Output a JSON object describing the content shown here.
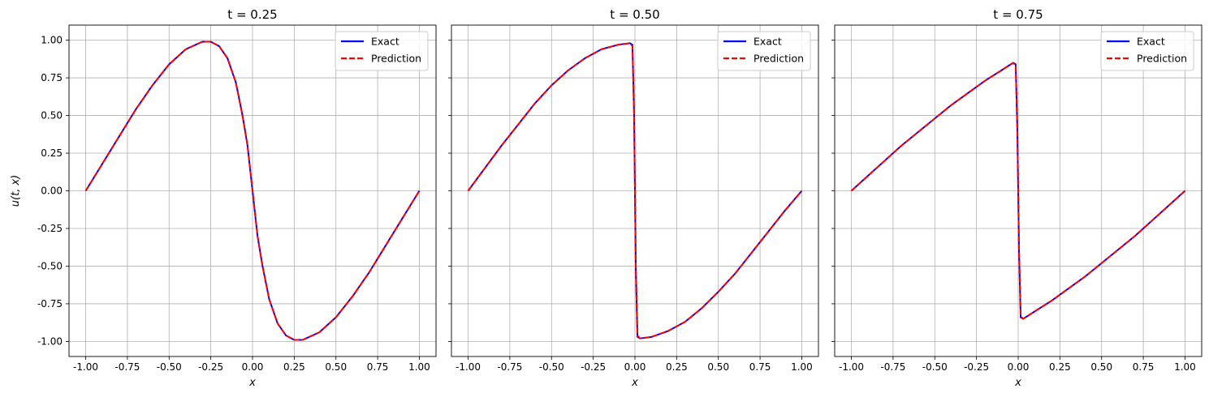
{
  "figure": {
    "series_styles": [
      {
        "name": "Exact",
        "color": "#0000ff",
        "dash": "solid"
      },
      {
        "name": "Prediction",
        "color": "#ff0000",
        "dash": "dashed"
      }
    ]
  },
  "chart_data": [
    {
      "type": "line",
      "title": "t = 0.25",
      "xlabel": "x",
      "ylabel": "u(t, x)",
      "xlim": [
        -1.1,
        1.1
      ],
      "ylim": [
        -1.1,
        1.1
      ],
      "xticks": [
        "-1.00",
        "-0.75",
        "-0.50",
        "-0.25",
        "0.00",
        "0.25",
        "0.50",
        "0.75",
        "1.00"
      ],
      "yticks": [
        "1.00",
        "0.75",
        "0.50",
        "0.25",
        "0.00",
        "-0.25",
        "-0.50",
        "-0.75",
        "-1.00"
      ],
      "grid": true,
      "legend_position": "top-right",
      "series": [
        {
          "name": "Exact",
          "x": [
            -1.0,
            -0.9,
            -0.8,
            -0.7,
            -0.6,
            -0.5,
            -0.4,
            -0.3,
            -0.25,
            -0.2,
            -0.15,
            -0.1,
            -0.06,
            -0.03,
            0.0,
            0.03,
            0.06,
            0.1,
            0.15,
            0.2,
            0.25,
            0.3,
            0.4,
            0.5,
            0.6,
            0.7,
            0.8,
            0.9,
            1.0
          ],
          "y": [
            0.0,
            0.18,
            0.36,
            0.54,
            0.7,
            0.84,
            0.94,
            0.99,
            0.99,
            0.96,
            0.88,
            0.72,
            0.5,
            0.3,
            0.0,
            -0.3,
            -0.5,
            -0.72,
            -0.88,
            -0.96,
            -0.99,
            -0.99,
            -0.94,
            -0.84,
            -0.7,
            -0.54,
            -0.36,
            -0.18,
            0.0
          ]
        },
        {
          "name": "Prediction",
          "x": [
            -1.0,
            -0.9,
            -0.8,
            -0.7,
            -0.6,
            -0.5,
            -0.4,
            -0.3,
            -0.25,
            -0.2,
            -0.15,
            -0.1,
            -0.06,
            -0.03,
            0.0,
            0.03,
            0.06,
            0.1,
            0.15,
            0.2,
            0.25,
            0.3,
            0.4,
            0.5,
            0.6,
            0.7,
            0.8,
            0.9,
            1.0
          ],
          "y": [
            0.0,
            0.18,
            0.36,
            0.54,
            0.7,
            0.84,
            0.94,
            0.99,
            0.99,
            0.96,
            0.88,
            0.72,
            0.5,
            0.3,
            0.0,
            -0.3,
            -0.5,
            -0.72,
            -0.88,
            -0.96,
            -0.99,
            -0.99,
            -0.94,
            -0.84,
            -0.7,
            -0.54,
            -0.36,
            -0.18,
            0.0
          ]
        }
      ]
    },
    {
      "type": "line",
      "title": "t = 0.50",
      "xlabel": "x",
      "ylabel": "",
      "xlim": [
        -1.1,
        1.1
      ],
      "ylim": [
        -1.1,
        1.1
      ],
      "xticks": [
        "-1.00",
        "-0.75",
        "-0.50",
        "-0.25",
        "0.00",
        "0.25",
        "0.50",
        "0.75",
        "1.00"
      ],
      "yticks": [],
      "grid": true,
      "legend_position": "top-right",
      "series": [
        {
          "name": "Exact",
          "x": [
            -1.0,
            -0.9,
            -0.8,
            -0.7,
            -0.6,
            -0.5,
            -0.4,
            -0.3,
            -0.2,
            -0.1,
            -0.03,
            -0.015,
            -0.005,
            0.0,
            0.005,
            0.015,
            0.03,
            0.1,
            0.2,
            0.3,
            0.4,
            0.5,
            0.6,
            0.7,
            0.8,
            0.9,
            1.0
          ],
          "y": [
            0.0,
            0.15,
            0.3,
            0.44,
            0.58,
            0.7,
            0.8,
            0.88,
            0.94,
            0.97,
            0.98,
            0.97,
            0.5,
            0.0,
            -0.5,
            -0.97,
            -0.98,
            -0.97,
            -0.93,
            -0.87,
            -0.78,
            -0.67,
            -0.55,
            -0.41,
            -0.27,
            -0.13,
            0.0
          ]
        },
        {
          "name": "Prediction",
          "x": [
            -1.0,
            -0.9,
            -0.8,
            -0.7,
            -0.6,
            -0.5,
            -0.4,
            -0.3,
            -0.2,
            -0.1,
            -0.03,
            -0.015,
            -0.005,
            0.0,
            0.005,
            0.015,
            0.03,
            0.1,
            0.2,
            0.3,
            0.4,
            0.5,
            0.6,
            0.7,
            0.8,
            0.9,
            1.0
          ],
          "y": [
            0.0,
            0.15,
            0.3,
            0.44,
            0.58,
            0.7,
            0.8,
            0.88,
            0.94,
            0.97,
            0.98,
            0.96,
            0.5,
            0.0,
            -0.5,
            -0.96,
            -0.98,
            -0.97,
            -0.93,
            -0.87,
            -0.78,
            -0.67,
            -0.55,
            -0.41,
            -0.27,
            -0.13,
            0.0
          ]
        }
      ]
    },
    {
      "type": "line",
      "title": "t = 0.75",
      "xlabel": "x",
      "ylabel": "",
      "xlim": [
        -1.1,
        1.1
      ],
      "ylim": [
        -1.1,
        1.1
      ],
      "xticks": [
        "-1.00",
        "-0.75",
        "-0.50",
        "-0.25",
        "0.00",
        "0.25",
        "0.50",
        "0.75",
        "1.00"
      ],
      "yticks": [],
      "grid": true,
      "legend_position": "top-right",
      "series": [
        {
          "name": "Exact",
          "x": [
            -1.0,
            -0.9,
            -0.8,
            -0.7,
            -0.6,
            -0.5,
            -0.4,
            -0.3,
            -0.2,
            -0.1,
            -0.03,
            -0.015,
            -0.005,
            0.0,
            0.005,
            0.015,
            0.03,
            0.1,
            0.2,
            0.3,
            0.4,
            0.5,
            0.6,
            0.7,
            0.8,
            0.9,
            1.0
          ],
          "y": [
            0.0,
            0.1,
            0.2,
            0.3,
            0.39,
            0.48,
            0.57,
            0.65,
            0.73,
            0.8,
            0.85,
            0.84,
            0.4,
            0.0,
            -0.4,
            -0.84,
            -0.85,
            -0.8,
            -0.73,
            -0.65,
            -0.57,
            -0.48,
            -0.39,
            -0.3,
            -0.2,
            -0.1,
            0.0
          ]
        },
        {
          "name": "Prediction",
          "x": [
            -1.0,
            -0.9,
            -0.8,
            -0.7,
            -0.6,
            -0.5,
            -0.4,
            -0.3,
            -0.2,
            -0.1,
            -0.03,
            -0.015,
            -0.005,
            0.0,
            0.005,
            0.015,
            0.03,
            0.1,
            0.2,
            0.3,
            0.4,
            0.5,
            0.6,
            0.7,
            0.8,
            0.9,
            1.0
          ],
          "y": [
            0.0,
            0.1,
            0.2,
            0.3,
            0.39,
            0.48,
            0.57,
            0.65,
            0.73,
            0.8,
            0.85,
            0.83,
            0.4,
            0.0,
            -0.4,
            -0.83,
            -0.85,
            -0.8,
            -0.73,
            -0.65,
            -0.57,
            -0.48,
            -0.39,
            -0.3,
            -0.2,
            -0.1,
            0.0
          ]
        }
      ]
    }
  ]
}
